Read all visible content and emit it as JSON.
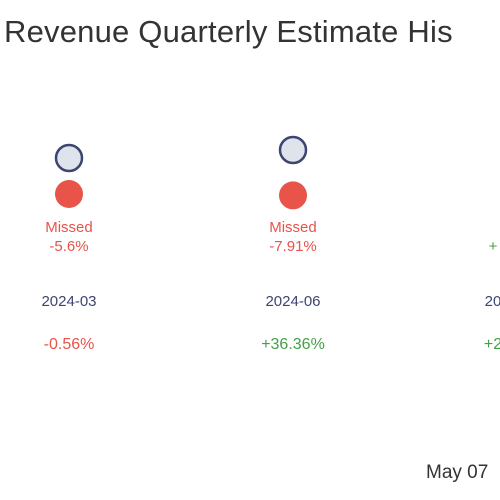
{
  "chart_data": {
    "type": "scatter",
    "title": "Revenue Quarterly Estimate His",
    "date_note": "May 07",
    "categories": [
      "2024-03",
      "2024-06",
      "20"
    ],
    "points": [
      {
        "period": "2024-03",
        "estimate_marker": "hollow",
        "actual_marker": "filled",
        "estimate_y_rel": 0.0,
        "actual_y_rel": -1.0,
        "result": "Missed",
        "surprise": "-5.6%",
        "change": "-0.56%",
        "change_status": "negative"
      },
      {
        "period": "2024-06",
        "estimate_marker": "hollow",
        "actual_marker": "filled",
        "estimate_y_rel": 0.4,
        "actual_y_rel": -1.1,
        "result": "Missed",
        "surprise": "-7.91%",
        "change": "+36.36%",
        "change_status": "positive"
      },
      {
        "period": "20",
        "estimate_marker": "",
        "actual_marker": "",
        "result": "",
        "surprise": "+",
        "change": "+2",
        "change_status": "positive"
      }
    ],
    "legend": "none",
    "grid": false
  },
  "colors": {
    "title": "#333333",
    "estimate_fill": "#dfe3ec",
    "estimate_stroke": "#3c4670",
    "actual_fill": "#e8534a",
    "missed_text": "#e8534a",
    "period_text": "#3c4670",
    "negative": "#e8534a",
    "positive": "#43a047"
  }
}
